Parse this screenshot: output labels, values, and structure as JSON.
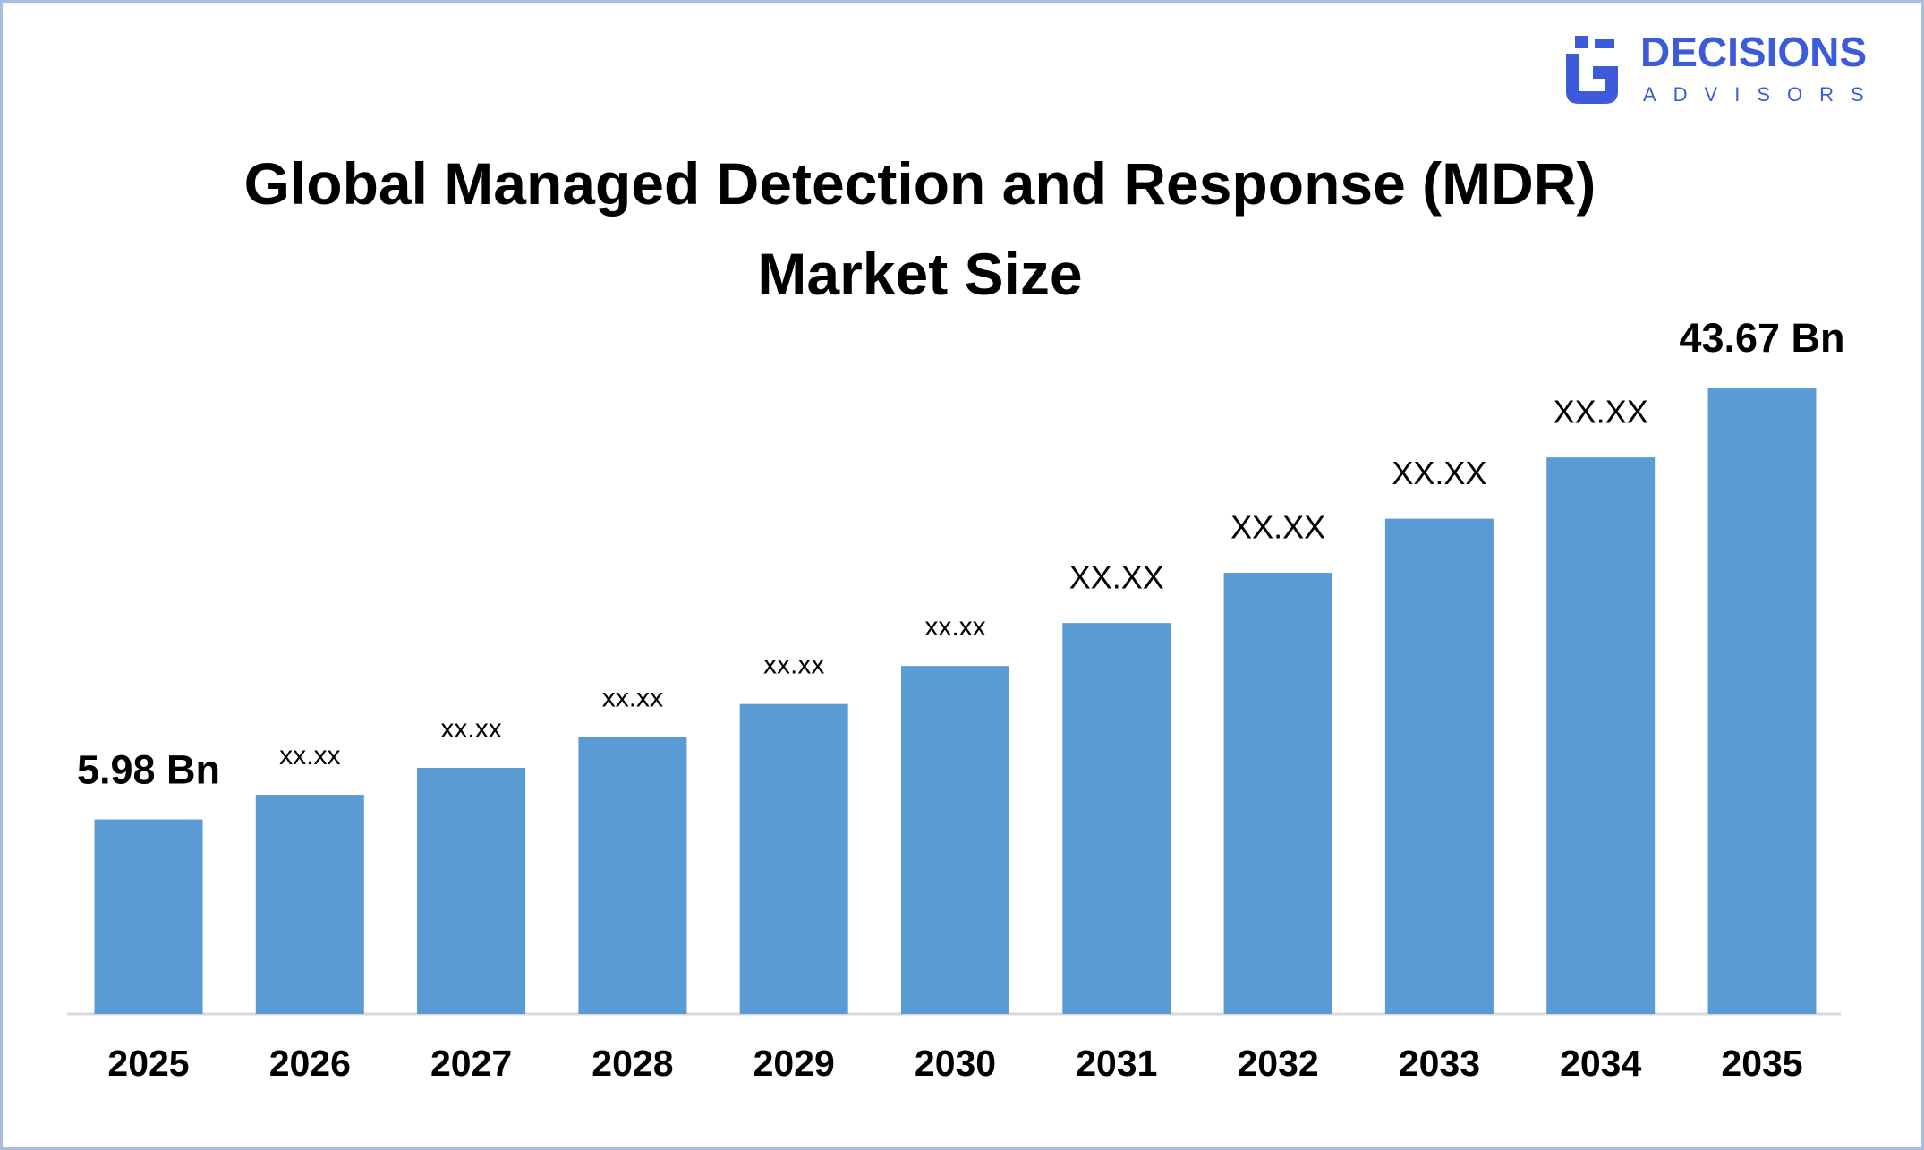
{
  "logo": {
    "name": "DECISIONS",
    "tagline": "ADVISORS"
  },
  "chart_data": {
    "type": "bar",
    "title": "Global Managed Detection and Response (MDR) Market Size",
    "categories": [
      "2025",
      "2026",
      "2027",
      "2028",
      "2029",
      "2030",
      "2031",
      "2032",
      "2033",
      "2034",
      "2035"
    ],
    "values": [
      5.98,
      8.13,
      10.48,
      13.16,
      16.05,
      19.37,
      23.12,
      27.5,
      32.22,
      37.57,
      43.67
    ],
    "value_labels": [
      "5.98 Bn",
      "xx.xx",
      "xx.xx",
      "xx.xx",
      "xx.xx",
      "xx.xx",
      "XX.XX",
      "XX.XX",
      "XX.XX",
      "XX.XX",
      "43.67 Bn"
    ],
    "color": "#5b9bd5",
    "ylim": [
      -11,
      45
    ]
  }
}
